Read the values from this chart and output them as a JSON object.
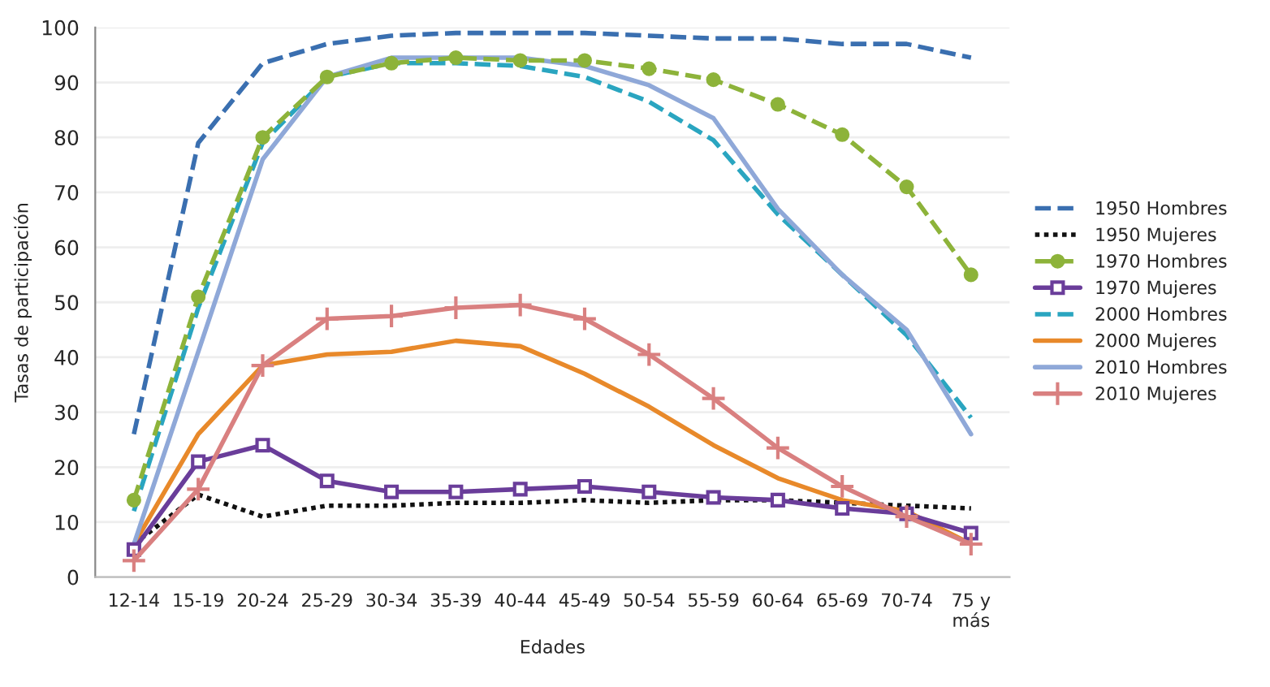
{
  "chart_data": {
    "type": "line",
    "xlabel": "Edades",
    "ylabel": "Tasas de participación",
    "categories": [
      "12-14",
      "15-19",
      "20-24",
      "25-29",
      "30-34",
      "35-39",
      "40-44",
      "45-49",
      "50-54",
      "55-59",
      "60-64",
      "65-69",
      "70-74",
      "75 y\nmás"
    ],
    "ylim": [
      0,
      100
    ],
    "yticks": [
      0,
      10,
      20,
      30,
      40,
      50,
      60,
      70,
      80,
      90,
      100
    ],
    "grid": "y",
    "legend": "right",
    "series": [
      {
        "name": "1950 Hombres",
        "color": "#3a6fb0",
        "line_style": "dashed",
        "marker": "none",
        "values": [
          26,
          79,
          93.5,
          97,
          98.5,
          99,
          99,
          99,
          98.5,
          98,
          98,
          97,
          97,
          94.5
        ]
      },
      {
        "name": "1950 Mujeres",
        "color": "#111111",
        "line_style": "dotted",
        "marker": "none",
        "values": [
          6,
          15,
          11,
          13,
          13,
          13.5,
          13.5,
          14,
          13.5,
          14,
          14,
          13.5,
          13,
          12.5
        ]
      },
      {
        "name": "1970 Hombres",
        "color": "#8db33a",
        "line_style": "dashed",
        "marker": "circle",
        "values": [
          14,
          51,
          80,
          91,
          93.5,
          94.5,
          94,
          94,
          92.5,
          90.5,
          86,
          80.5,
          71,
          55
        ]
      },
      {
        "name": "1970 Mujeres",
        "color": "#6a3d9a",
        "line_style": "solid",
        "marker": "square",
        "values": [
          5,
          21,
          24,
          17.5,
          15.5,
          15.5,
          16,
          16.5,
          15.5,
          14.5,
          14,
          12.5,
          11.5,
          8
        ]
      },
      {
        "name": "2000 Hombres",
        "color": "#2aa5c0",
        "line_style": "dashed",
        "marker": "none",
        "values": [
          12,
          49,
          79,
          91,
          93.5,
          93.5,
          93,
          91,
          86.5,
          79.5,
          66,
          55,
          44,
          29
        ]
      },
      {
        "name": "2000 Mujeres",
        "color": "#e8892a",
        "line_style": "solid",
        "marker": "none",
        "values": [
          6,
          26,
          38.5,
          40.5,
          41,
          43,
          42,
          37,
          31,
          24,
          18,
          14,
          12,
          6
        ]
      },
      {
        "name": "2010 Hombres",
        "color": "#8fa8d8",
        "line_style": "solid",
        "marker": "none",
        "values": [
          6,
          41,
          76,
          91,
          94.5,
          94.5,
          94.5,
          93,
          89.5,
          83.5,
          67,
          55,
          45,
          26
        ]
      },
      {
        "name": "2010 Mujeres",
        "color": "#d98080",
        "line_style": "solid",
        "marker": "cross",
        "values": [
          3,
          16,
          38.5,
          47,
          47.5,
          49,
          49.5,
          47,
          40.5,
          32.5,
          23.5,
          16.5,
          11,
          6
        ]
      }
    ]
  }
}
